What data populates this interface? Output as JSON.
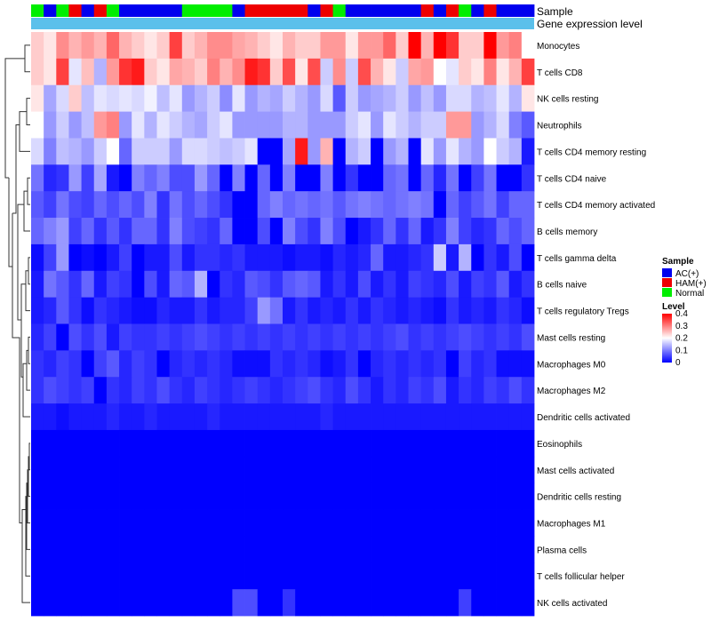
{
  "chart_data": {
    "type": "heatmap",
    "annotation_labels": {
      "sample": "Sample",
      "expression": "Gene expression level"
    },
    "sample_groups": [
      "AC(+)",
      "HAM(+)",
      "Normal"
    ],
    "sample_colors": {
      "AC(+)": "#0000ee",
      "HAM(+)": "#ee0000",
      "Normal": "#00ee00"
    },
    "expression_bar_color": "#5bc0eb",
    "legend": {
      "sample_title": "Sample",
      "level_title": "Level",
      "level_ticks": [
        "0.4",
        "0.3",
        "0.2",
        "0.1",
        "0"
      ],
      "level_range": [
        0,
        0.4
      ]
    },
    "sample_annotation": [
      "Normal",
      "AC(+)",
      "Normal",
      "HAM(+)",
      "AC(+)",
      "HAM(+)",
      "Normal",
      "AC(+)",
      "AC(+)",
      "AC(+)",
      "AC(+)",
      "AC(+)",
      "Normal",
      "Normal",
      "Normal",
      "Normal",
      "AC(+)",
      "HAM(+)",
      "HAM(+)",
      "HAM(+)",
      "HAM(+)",
      "HAM(+)",
      "AC(+)",
      "HAM(+)",
      "Normal",
      "AC(+)",
      "AC(+)",
      "AC(+)",
      "AC(+)",
      "AC(+)",
      "AC(+)",
      "HAM(+)",
      "AC(+)",
      "HAM(+)",
      "Normal",
      "AC(+)",
      "HAM(+)",
      "AC(+)",
      "AC(+)",
      "AC(+)"
    ],
    "rows": [
      {
        "label": "Monocytes",
        "values": [
          0.24,
          0.22,
          0.29,
          0.26,
          0.28,
          0.26,
          0.32,
          0.26,
          0.24,
          0.22,
          0.24,
          0.35,
          0.24,
          0.26,
          0.29,
          0.29,
          0.27,
          0.26,
          0.24,
          0.22,
          0.26,
          0.24,
          0.24,
          0.28,
          0.28,
          0.22,
          0.28,
          0.28,
          0.32,
          0.24,
          0.4,
          0.26,
          0.4,
          0.36,
          0.24,
          0.24,
          0.4,
          0.28,
          0.3,
          0.2
        ]
      },
      {
        "label": "T cells CD8",
        "values": [
          0.24,
          0.22,
          0.35,
          0.18,
          0.25,
          0.14,
          0.28,
          0.36,
          0.38,
          0.24,
          0.22,
          0.27,
          0.26,
          0.24,
          0.3,
          0.26,
          0.29,
          0.38,
          0.36,
          0.24,
          0.34,
          0.22,
          0.34,
          0.16,
          0.29,
          0.16,
          0.34,
          0.26,
          0.22,
          0.16,
          0.27,
          0.28,
          0.2,
          0.18,
          0.24,
          0.22,
          0.3,
          0.22,
          0.26,
          0.35
        ]
      },
      {
        "label": "NK cells resting",
        "values": [
          0.22,
          0.13,
          0.17,
          0.24,
          0.15,
          0.18,
          0.17,
          0.18,
          0.17,
          0.19,
          0.15,
          0.18,
          0.12,
          0.14,
          0.16,
          0.11,
          0.18,
          0.12,
          0.14,
          0.13,
          0.16,
          0.14,
          0.12,
          0.17,
          0.07,
          0.16,
          0.12,
          0.13,
          0.14,
          0.16,
          0.12,
          0.15,
          0.12,
          0.17,
          0.17,
          0.14,
          0.15,
          0.18,
          0.14,
          0.22
        ]
      },
      {
        "label": "Neutrophils",
        "values": [
          0.2,
          0.12,
          0.16,
          0.12,
          0.15,
          0.28,
          0.3,
          0.12,
          0.18,
          0.14,
          0.18,
          0.16,
          0.14,
          0.13,
          0.16,
          0.18,
          0.12,
          0.12,
          0.12,
          0.12,
          0.14,
          0.14,
          0.12,
          0.12,
          0.12,
          0.16,
          0.18,
          0.12,
          0.18,
          0.16,
          0.14,
          0.16,
          0.16,
          0.28,
          0.28,
          0.12,
          0.14,
          0.17,
          0.1,
          0.07
        ]
      },
      {
        "label": "T cells CD4 memory resting",
        "values": [
          0.17,
          0.1,
          0.15,
          0.14,
          0.12,
          0.16,
          0.2,
          0.08,
          0.16,
          0.16,
          0.16,
          0.12,
          0.17,
          0.17,
          0.16,
          0.15,
          0.16,
          0.18,
          0.0,
          0.0,
          0.13,
          0.38,
          0.12,
          0.26,
          0.0,
          0.14,
          0.16,
          0.0,
          0.12,
          0.14,
          0.0,
          0.18,
          0.12,
          0.18,
          0.14,
          0.12,
          0.2,
          0.16,
          0.14,
          0.02
        ]
      },
      {
        "label": "T cells CD4 naive",
        "values": [
          0.09,
          0.03,
          0.04,
          0.12,
          0.05,
          0.13,
          0.02,
          0.0,
          0.1,
          0.08,
          0.1,
          0.06,
          0.06,
          0.12,
          0.08,
          0.0,
          0.1,
          0.0,
          0.08,
          0.0,
          0.1,
          0.0,
          0.0,
          0.1,
          0.0,
          0.04,
          0.0,
          0.0,
          0.08,
          0.09,
          0.0,
          0.08,
          0.03,
          0.09,
          0.0,
          0.05,
          0.09,
          0.0,
          0.0,
          0.04
        ]
      },
      {
        "label": "T cells CD4 memory activated",
        "values": [
          0.07,
          0.05,
          0.09,
          0.06,
          0.05,
          0.08,
          0.06,
          0.08,
          0.06,
          0.1,
          0.04,
          0.09,
          0.06,
          0.08,
          0.06,
          0.04,
          0.0,
          0.0,
          0.08,
          0.1,
          0.08,
          0.09,
          0.08,
          0.09,
          0.07,
          0.09,
          0.1,
          0.09,
          0.08,
          0.09,
          0.1,
          0.09,
          0.0,
          0.08,
          0.05,
          0.07,
          0.09,
          0.05,
          0.08,
          0.08
        ]
      },
      {
        "label": "B cells memory",
        "values": [
          0.08,
          0.1,
          0.12,
          0.05,
          0.08,
          0.04,
          0.07,
          0.04,
          0.08,
          0.08,
          0.04,
          0.1,
          0.06,
          0.05,
          0.04,
          0.08,
          0.0,
          0.0,
          0.06,
          0.0,
          0.1,
          0.06,
          0.04,
          0.1,
          0.06,
          0.0,
          0.02,
          0.04,
          0.08,
          0.04,
          0.08,
          0.02,
          0.04,
          0.1,
          0.05,
          0.03,
          0.04,
          0.08,
          0.06,
          0.08
        ]
      },
      {
        "label": "T cells gamma delta",
        "values": [
          0.01,
          0.05,
          0.12,
          0.0,
          0.01,
          0.0,
          0.02,
          0.05,
          0.0,
          0.02,
          0.02,
          0.06,
          0.02,
          0.04,
          0.04,
          0.03,
          0.04,
          0.02,
          0.02,
          0.02,
          0.01,
          0.02,
          0.02,
          0.01,
          0.03,
          0.02,
          0.03,
          0.08,
          0.02,
          0.02,
          0.03,
          0.04,
          0.16,
          0.02,
          0.14,
          0.0,
          0.04,
          0.02,
          0.06,
          0.0
        ]
      },
      {
        "label": "B cells naive",
        "values": [
          0.02,
          0.09,
          0.07,
          0.04,
          0.08,
          0.02,
          0.05,
          0.04,
          0.0,
          0.06,
          0.02,
          0.08,
          0.07,
          0.14,
          0.0,
          0.04,
          0.03,
          0.07,
          0.06,
          0.04,
          0.07,
          0.08,
          0.07,
          0.02,
          0.04,
          0.02,
          0.06,
          0.02,
          0.04,
          0.02,
          0.05,
          0.04,
          0.03,
          0.06,
          0.02,
          0.05,
          0.04,
          0.07,
          0.02,
          0.04
        ]
      },
      {
        "label": "T cells regulatory  Tregs",
        "values": [
          0.02,
          0.03,
          0.07,
          0.04,
          0.01,
          0.04,
          0.03,
          0.02,
          0.01,
          0.01,
          0.03,
          0.02,
          0.02,
          0.04,
          0.02,
          0.03,
          0.03,
          0.05,
          0.12,
          0.09,
          0.02,
          0.04,
          0.02,
          0.03,
          0.02,
          0.04,
          0.02,
          0.04,
          0.03,
          0.02,
          0.03,
          0.02,
          0.01,
          0.04,
          0.02,
          0.03,
          0.02,
          0.04,
          0.03,
          0.01
        ]
      },
      {
        "label": "Mast cells resting",
        "values": [
          0.03,
          0.05,
          0.0,
          0.06,
          0.04,
          0.06,
          0.02,
          0.05,
          0.04,
          0.04,
          0.05,
          0.04,
          0.05,
          0.06,
          0.05,
          0.04,
          0.05,
          0.04,
          0.05,
          0.04,
          0.05,
          0.04,
          0.05,
          0.04,
          0.05,
          0.04,
          0.05,
          0.04,
          0.05,
          0.06,
          0.04,
          0.05,
          0.04,
          0.05,
          0.06,
          0.05,
          0.04,
          0.05,
          0.04,
          0.06
        ]
      },
      {
        "label": "Macrophages M0",
        "values": [
          0.04,
          0.03,
          0.05,
          0.04,
          0.0,
          0.05,
          0.07,
          0.03,
          0.05,
          0.04,
          0.0,
          0.03,
          0.04,
          0.03,
          0.04,
          0.03,
          0.01,
          0.01,
          0.01,
          0.04,
          0.03,
          0.04,
          0.03,
          0.01,
          0.02,
          0.04,
          0.0,
          0.03,
          0.04,
          0.03,
          0.04,
          0.03,
          0.04,
          0.0,
          0.05,
          0.03,
          0.04,
          0.01,
          0.01,
          0.01
        ]
      },
      {
        "label": "Macrophages M2",
        "values": [
          0.04,
          0.06,
          0.05,
          0.04,
          0.05,
          0.0,
          0.04,
          0.03,
          0.05,
          0.04,
          0.06,
          0.04,
          0.03,
          0.05,
          0.04,
          0.03,
          0.04,
          0.05,
          0.04,
          0.03,
          0.04,
          0.05,
          0.06,
          0.04,
          0.03,
          0.06,
          0.04,
          0.02,
          0.04,
          0.03,
          0.05,
          0.04,
          0.06,
          0.02,
          0.04,
          0.03,
          0.05,
          0.04,
          0.06,
          0.04
        ]
      },
      {
        "label": "Dendritic cells activated",
        "values": [
          0.02,
          0.02,
          0.01,
          0.02,
          0.02,
          0.02,
          0.03,
          0.02,
          0.02,
          0.03,
          0.02,
          0.02,
          0.02,
          0.02,
          0.03,
          0.02,
          0.02,
          0.02,
          0.02,
          0.02,
          0.02,
          0.02,
          0.02,
          0.03,
          0.02,
          0.02,
          0.02,
          0.02,
          0.02,
          0.02,
          0.02,
          0.02,
          0.02,
          0.02,
          0.02,
          0.02,
          0.02,
          0.02,
          0.02,
          0.02
        ]
      },
      {
        "label": "Eosinophils",
        "values": [
          0,
          0,
          0,
          0,
          0,
          0,
          0,
          0,
          0,
          0,
          0,
          0,
          0,
          0,
          0,
          0,
          0,
          0,
          0,
          0,
          0,
          0,
          0,
          0,
          0,
          0,
          0,
          0,
          0,
          0,
          0,
          0,
          0,
          0,
          0,
          0,
          0,
          0,
          0,
          0
        ]
      },
      {
        "label": "Mast cells activated",
        "values": [
          0,
          0,
          0,
          0,
          0,
          0,
          0,
          0,
          0,
          0,
          0,
          0,
          0,
          0,
          0,
          0,
          0,
          0,
          0,
          0,
          0,
          0,
          0,
          0,
          0,
          0,
          0,
          0,
          0,
          0,
          0,
          0,
          0,
          0,
          0,
          0,
          0,
          0,
          0,
          0
        ]
      },
      {
        "label": "Dendritic cells resting",
        "values": [
          0,
          0,
          0,
          0,
          0,
          0,
          0,
          0,
          0,
          0,
          0,
          0,
          0,
          0,
          0,
          0,
          0,
          0,
          0,
          0,
          0,
          0,
          0,
          0,
          0,
          0,
          0,
          0,
          0,
          0,
          0,
          0,
          0,
          0,
          0,
          0,
          0,
          0,
          0,
          0
        ]
      },
      {
        "label": "Macrophages M1",
        "values": [
          0,
          0,
          0,
          0,
          0,
          0,
          0,
          0,
          0,
          0,
          0,
          0,
          0,
          0,
          0,
          0,
          0,
          0,
          0,
          0,
          0,
          0,
          0,
          0,
          0,
          0,
          0,
          0,
          0,
          0,
          0,
          0,
          0,
          0,
          0,
          0,
          0,
          0,
          0,
          0
        ]
      },
      {
        "label": "Plasma cells",
        "values": [
          0,
          0,
          0,
          0,
          0,
          0,
          0,
          0,
          0,
          0,
          0,
          0,
          0,
          0,
          0,
          0,
          0,
          0,
          0,
          0,
          0,
          0,
          0,
          0,
          0,
          0,
          0,
          0,
          0,
          0,
          0,
          0,
          0,
          0,
          0,
          0,
          0,
          0,
          0,
          0
        ]
      },
      {
        "label": "T cells follicular helper",
        "values": [
          0,
          0,
          0,
          0,
          0,
          0,
          0,
          0,
          0,
          0,
          0,
          0,
          0,
          0,
          0,
          0,
          0,
          0,
          0,
          0,
          0,
          0,
          0,
          0,
          0,
          0,
          0,
          0,
          0,
          0,
          0,
          0,
          0,
          0,
          0,
          0,
          0,
          0,
          0,
          0
        ]
      },
      {
        "label": "NK cells activated",
        "values": [
          0,
          0,
          0,
          0,
          0,
          0,
          0,
          0,
          0,
          0,
          0,
          0,
          0,
          0,
          0,
          0,
          0.06,
          0.06,
          0,
          0,
          0.04,
          0,
          0,
          0,
          0,
          0,
          0,
          0,
          0,
          0,
          0,
          0,
          0,
          0,
          0.05,
          0,
          0,
          0,
          0,
          0
        ]
      }
    ]
  }
}
